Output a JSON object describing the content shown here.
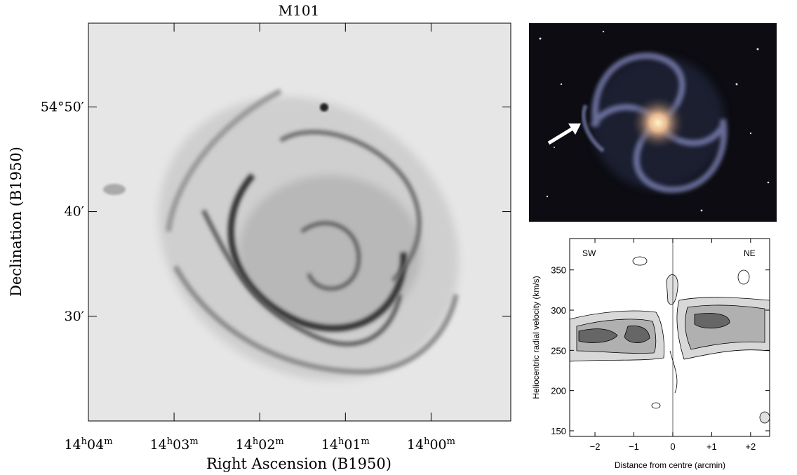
{
  "sky_map": {
    "title": "M101",
    "xlabel": "Right Ascension (B1950)",
    "ylabel": "Declination (B1950)",
    "xlim": [
      4,
      -0.93
    ],
    "ylim": [
      20,
      58
    ],
    "xticks": [
      {
        "value": 4,
        "label": [
          "14",
          "h",
          "04",
          "m"
        ]
      },
      {
        "value": 3,
        "label": [
          "14",
          "h",
          "03",
          "m"
        ]
      },
      {
        "value": 2,
        "label": [
          "14",
          "h",
          "02",
          "m"
        ]
      },
      {
        "value": 1,
        "label": [
          "14",
          "h",
          "01",
          "m"
        ]
      },
      {
        "value": 0,
        "label": [
          "14",
          "h",
          "00",
          "m"
        ]
      }
    ],
    "yticks": [
      {
        "value": 50,
        "label": "54°50′"
      },
      {
        "value": 40,
        "label": "40′"
      },
      {
        "value": 30,
        "label": "30′"
      }
    ]
  },
  "pv_diagram": {
    "xlabel": "Distance from centre (arcmin)",
    "ylabel": "Heliocentric radial velocity (km/s)",
    "left_label": "SW",
    "right_label": "NE",
    "xlim": [
      -2.65,
      2.49
    ],
    "ylim": [
      143,
      389
    ],
    "xticks": [
      {
        "value": -2,
        "label": "−2"
      },
      {
        "value": -1,
        "label": "−1"
      },
      0,
      {
        "value": 1,
        "label": "+1"
      },
      {
        "value": 2,
        "label": "+2"
      }
    ],
    "yticks": [
      150,
      200,
      250,
      300,
      350
    ]
  }
}
